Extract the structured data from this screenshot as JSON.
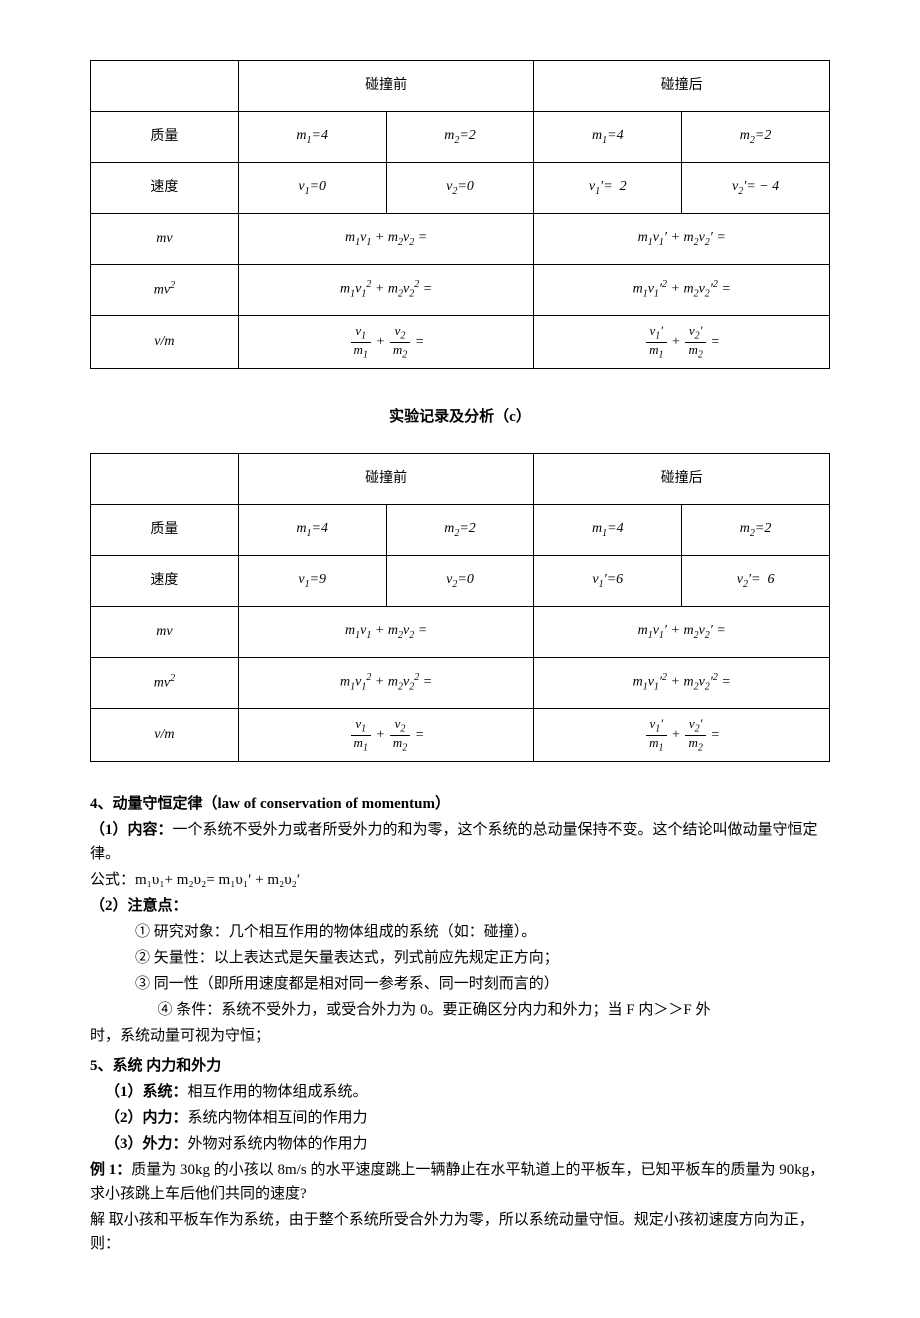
{
  "tableCommon": {
    "header_before": "碰撞前",
    "header_after": "碰撞后",
    "row_mass_label": "质量",
    "row_velocity_label": "速度",
    "m1_label": "m₁=4",
    "m2_label": "m₂=2",
    "mv_before": "m₁v₁ + m₂v₂ =",
    "mv_after": "m₁v₁′ + m₂v₂′ =",
    "mv2_before": "m₁v₁² + m₂v₂² =",
    "mv2_after": "m₁v₁′² + m₂v₂′² =",
    "border_color": "#000000",
    "background": "#ffffff"
  },
  "tableB": {
    "v1": "v₁=0",
    "v2": "v₂=0",
    "v1p": "v₁′=  2",
    "v2p": "v₂′= − 4"
  },
  "captionC": "实验记录及分析（c）",
  "tableC": {
    "v1": "v₁=9",
    "v2": "v₂=0",
    "v1p": "v₁′=6",
    "v2p": "v₂′=  6"
  },
  "text": {
    "h4": "4、动量守恒定律（law of conservation of momentum）",
    "h4_1": "（1）内容：",
    "h4_1_body": "一个系统不受外力或者所受外力的和为零，这个系统的总动量保持不变。这个结论叫做动量守恒定律。",
    "formula_label": "公式：m₁υ₁+ m₂υ₂= m₁υ₁′ + m₂υ₂′",
    "h4_2": "（2）注意点：",
    "note1": "① 研究对象：几个相互作用的物体组成的系统（如：碰撞）。",
    "note2": "② 矢量性：以上表达式是矢量表达式，列式前应先规定正方向；",
    "note3": "③ 同一性（即所用速度都是相对同一参考系、同一时刻而言的）",
    "note4": "④ 条件：系统不受外力，或受合外力为 0。要正确区分内力和外力；当 F 内＞＞F 外时，系统动量可视为守恒；",
    "h5": "5、系统  内力和外力",
    "h5_1": "（1）系统：",
    "h5_1_body": "相互作用的物体组成系统。",
    "h5_2": "（2）内力：",
    "h5_2_body": "系统内物体相互间的作用力",
    "h5_3": "（3）外力：",
    "h5_3_body": "外物对系统内物体的作用力",
    "ex_label": "例 1：",
    "ex_body": "质量为 30kg 的小孩以 8m/s 的水平速度跳上一辆静止在水平轨道上的平板车，已知平板车的质量为 90kg，求小孩跳上车后他们共同的速度?",
    "sol": "解 取小孩和平板车作为系统，由于整个系统所受合外力为零，所以系统动量守恒。规定小孩初速度方向为正，则："
  }
}
